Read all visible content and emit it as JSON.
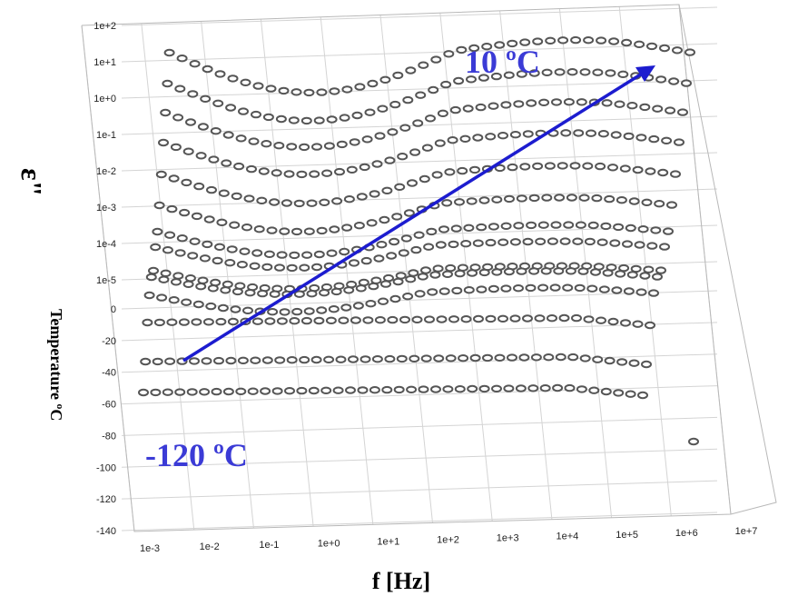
{
  "chart_data": {
    "type": "scatter",
    "title": "",
    "xlabel": "f [Hz]",
    "ylabel": "ε\"",
    "zlabel": "Temperature ºC",
    "x_ticks": [
      "1e-3",
      "1e-2",
      "1e-1",
      "1e+0",
      "1e+1",
      "1e+2",
      "1e+3",
      "1e+4",
      "1e+5",
      "1e+6",
      "1e+7"
    ],
    "y_ticks": [
      "1e-5",
      "1e-4",
      "1e-3",
      "1e-2",
      "1e-1",
      "1e+0",
      "1e+1",
      "1e+2"
    ],
    "z_ticks": [
      "-140",
      "-120",
      "-100",
      "-80",
      "-60",
      "-40",
      "-20",
      "0"
    ],
    "xlim": [
      0.001,
      10000000
    ],
    "zlim": [
      -140,
      0
    ],
    "grid": true,
    "annotations": {
      "high": "10  ºC",
      "low": "-120 ºC"
    },
    "colors": {
      "arrow": "#1c1ccf",
      "annotation": "#3b3bd6",
      "markers": "#555555"
    },
    "series_count": 14
  }
}
